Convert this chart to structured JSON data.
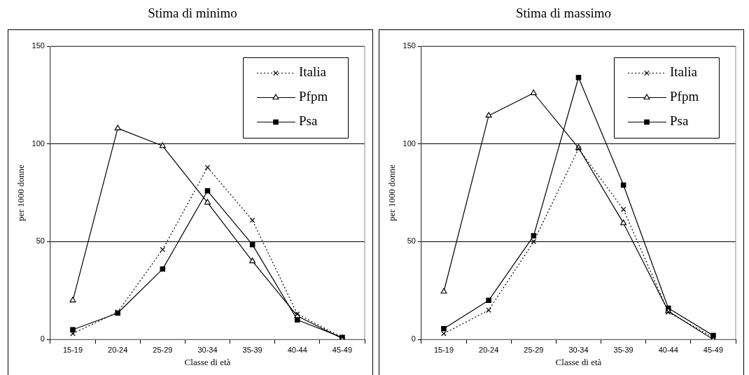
{
  "chart_data": [
    {
      "type": "line",
      "title": "Stima di minimo",
      "xlabel": "Classe di età",
      "ylabel": "per 1000 donne",
      "categories": [
        "15-19",
        "20-24",
        "25-29",
        "30-34",
        "35-39",
        "40-44",
        "45-49"
      ],
      "ylim": [
        0,
        150
      ],
      "yticks": [
        0,
        50,
        100,
        150
      ],
      "grid": "y",
      "legend": "top right",
      "series": [
        {
          "name": "Italia",
          "color": "#000000",
          "marker": "cross",
          "line_style": "dotted",
          "values": [
            3,
            14,
            46,
            88,
            61,
            13,
            1
          ]
        },
        {
          "name": "Pfpm",
          "color": "#000000",
          "marker": "triangle",
          "line_style": "solid",
          "values": [
            20,
            108,
            99,
            70,
            40,
            12,
            0.5
          ]
        },
        {
          "name": "Psa",
          "color": "#000000",
          "marker": "square",
          "line_style": "solid",
          "values": [
            5,
            13.5,
            36,
            76,
            48.5,
            10,
            1
          ]
        }
      ]
    },
    {
      "type": "line",
      "title": "Stima di massimo",
      "xlabel": "Classe di età",
      "ylabel": "per 1000 donne",
      "categories": [
        "15-19",
        "20-24",
        "25-29",
        "30-34",
        "35-39",
        "40-44",
        "45-49"
      ],
      "ylim": [
        0,
        150
      ],
      "yticks": [
        0,
        50,
        100,
        150
      ],
      "grid": "y",
      "legend": "top right",
      "series": [
        {
          "name": "Italia",
          "color": "#000000",
          "marker": "cross",
          "line_style": "dotted",
          "values": [
            3,
            15,
            50,
            97.5,
            66.5,
            14,
            1
          ]
        },
        {
          "name": "Pfpm",
          "color": "#000000",
          "marker": "triangle",
          "line_style": "solid",
          "values": [
            24.5,
            114.5,
            126,
            98,
            59.5,
            14.5,
            0
          ]
        },
        {
          "name": "Psa",
          "color": "#000000",
          "marker": "square",
          "line_style": "solid",
          "values": [
            5.5,
            20,
            53,
            134,
            79,
            16,
            2
          ]
        }
      ]
    }
  ]
}
